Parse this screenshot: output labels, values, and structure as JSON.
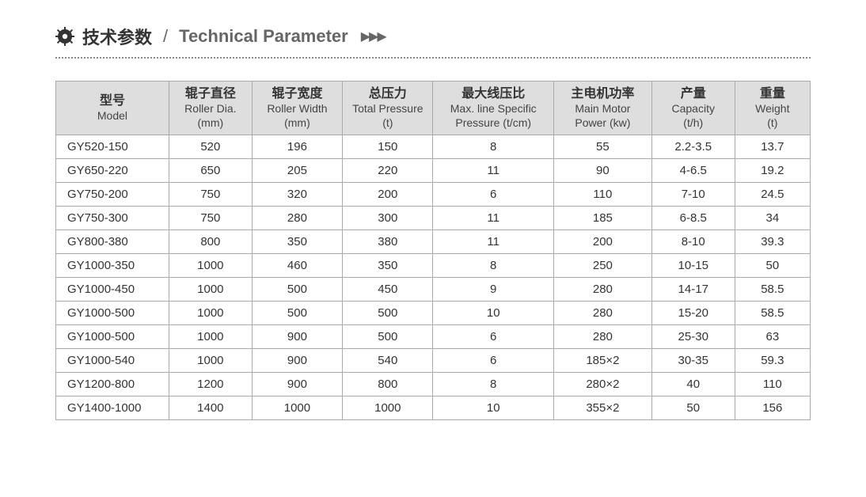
{
  "header": {
    "title_cn": "技术参数",
    "separator": "/",
    "title_en": "Technical Parameter",
    "arrows": "▶▶▶"
  },
  "table": {
    "type": "table",
    "background_color": "#ffffff",
    "header_bg": "#dedede",
    "border_color": "#aaaaaa",
    "text_color": "#333333",
    "header_fontsize_cn": 16,
    "header_fontsize_en": 14,
    "cell_fontsize": 15,
    "col_widths_pct": [
      15,
      11,
      12,
      12,
      16,
      13,
      11,
      10
    ],
    "columns": [
      {
        "cn": "型号",
        "en": "Model",
        "unit": ""
      },
      {
        "cn": "辊子直径",
        "en": "Roller Dia.",
        "unit": "(mm)"
      },
      {
        "cn": "辊子宽度",
        "en": "Roller Width",
        "unit": "(mm)"
      },
      {
        "cn": "总压力",
        "en": "Total Pressure",
        "unit": "(t)"
      },
      {
        "cn": "最大线压比",
        "en": "Max. line Specific",
        "unit": "Pressure (t/cm)"
      },
      {
        "cn": "主电机功率",
        "en": "Main Motor",
        "unit": "Power (kw)"
      },
      {
        "cn": "产量",
        "en": "Capacity",
        "unit": "(t/h)"
      },
      {
        "cn": "重量",
        "en": "Weight",
        "unit": "(t)"
      }
    ],
    "rows": [
      [
        "GY520-150",
        "520",
        "196",
        "150",
        "8",
        "55",
        "2.2-3.5",
        "13.7"
      ],
      [
        "GY650-220",
        "650",
        "205",
        "220",
        "11",
        "90",
        "4-6.5",
        "19.2"
      ],
      [
        "GY750-200",
        "750",
        "320",
        "200",
        "6",
        "110",
        "7-10",
        "24.5"
      ],
      [
        "GY750-300",
        "750",
        "280",
        "300",
        "11",
        "185",
        "6-8.5",
        "34"
      ],
      [
        "GY800-380",
        "800",
        "350",
        "380",
        "11",
        "200",
        "8-10",
        "39.3"
      ],
      [
        "GY1000-350",
        "1000",
        "460",
        "350",
        "8",
        "250",
        "10-15",
        "50"
      ],
      [
        "GY1000-450",
        "1000",
        "500",
        "450",
        "9",
        "280",
        "14-17",
        "58.5"
      ],
      [
        "GY1000-500",
        "1000",
        "500",
        "500",
        "10",
        "280",
        "15-20",
        "58.5"
      ],
      [
        "GY1000-500",
        "1000",
        "900",
        "500",
        "6",
        "280",
        "25-30",
        "63"
      ],
      [
        "GY1000-540",
        "1000",
        "900",
        "540",
        "6",
        "185×2",
        "30-35",
        "59.3"
      ],
      [
        "GY1200-800",
        "1200",
        "900",
        "800",
        "8",
        "280×2",
        "40",
        "110"
      ],
      [
        "GY1400-1000",
        "1400",
        "1000",
        "1000",
        "10",
        "355×2",
        "50",
        "156"
      ]
    ]
  }
}
